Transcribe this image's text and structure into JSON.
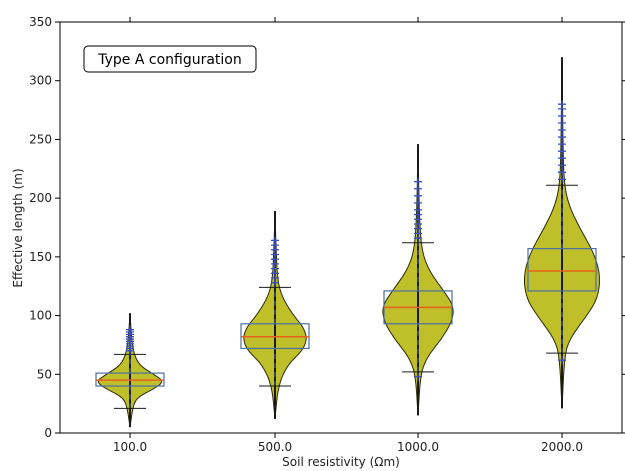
{
  "chart_data": {
    "type": "violin",
    "xlabel": "Soil resistivity (Ωm)",
    "ylabel": "Effective length (m)",
    "ylim": [
      0,
      350
    ],
    "yticks": [
      0,
      50,
      100,
      150,
      200,
      250,
      300,
      350
    ],
    "annotation": "Type A configuration",
    "categories": [
      "100.0",
      "500.0",
      "1000.0",
      "2000.0"
    ],
    "colors": {
      "violin_fill": "#bfbf2a",
      "violin_edge": "#2b2b00",
      "box": "#4a6fa5",
      "median": "#e8601c",
      "flier": "#3a50c0",
      "whisker": "#1a1a1a",
      "axis": "#000000"
    },
    "series": [
      {
        "category": "100.0",
        "min": 5,
        "whisker_low": 21,
        "q1": 40,
        "median": 45,
        "q3": 51,
        "whisker_high": 67,
        "max": 102,
        "fliers": [
          70,
          72,
          74,
          76,
          78,
          80,
          82,
          84,
          86,
          88
        ],
        "profile": [
          [
            5,
            0
          ],
          [
            20,
            0.04
          ],
          [
            30,
            0.1
          ],
          [
            38,
            0.4
          ],
          [
            44,
            0.55
          ],
          [
            50,
            0.38
          ],
          [
            58,
            0.14
          ],
          [
            70,
            0.05
          ],
          [
            85,
            0.02
          ],
          [
            102,
            0
          ]
        ]
      },
      {
        "category": "500.0",
        "min": 12,
        "whisker_low": 40,
        "q1": 72,
        "median": 82,
        "q3": 93,
        "whisker_high": 124,
        "max": 189,
        "fliers": [
          128,
          132,
          136,
          140,
          144,
          148,
          152,
          156,
          160,
          164
        ],
        "profile": [
          [
            12,
            0
          ],
          [
            40,
            0.05
          ],
          [
            58,
            0.2
          ],
          [
            70,
            0.44
          ],
          [
            80,
            0.52
          ],
          [
            90,
            0.46
          ],
          [
            100,
            0.3
          ],
          [
            115,
            0.12
          ],
          [
            130,
            0.04
          ],
          [
            160,
            0.015
          ],
          [
            189,
            0
          ]
        ]
      },
      {
        "category": "1000.0",
        "min": 15,
        "whisker_low": 52,
        "q1": 93,
        "median": 107,
        "q3": 121,
        "whisker_high": 162,
        "max": 246,
        "fliers": [
          48,
          166,
          170,
          174,
          178,
          182,
          186,
          190,
          196,
          202,
          208,
          214
        ],
        "profile": [
          [
            15,
            0
          ],
          [
            50,
            0.04
          ],
          [
            65,
            0.15
          ],
          [
            80,
            0.38
          ],
          [
            95,
            0.55
          ],
          [
            108,
            0.58
          ],
          [
            122,
            0.4
          ],
          [
            138,
            0.18
          ],
          [
            155,
            0.06
          ],
          [
            185,
            0.02
          ],
          [
            246,
            0
          ]
        ]
      },
      {
        "category": "2000.0",
        "min": 21,
        "whisker_low": 68,
        "q1": 121,
        "median": 138,
        "q3": 157,
        "whisker_high": 211,
        "max": 320,
        "fliers": [
          62,
          216,
          222,
          228,
          234,
          240,
          246,
          252,
          258,
          264,
          270,
          276,
          280
        ],
        "profile": [
          [
            21,
            0
          ],
          [
            65,
            0.04
          ],
          [
            80,
            0.12
          ],
          [
            100,
            0.4
          ],
          [
            115,
            0.58
          ],
          [
            135,
            0.62
          ],
          [
            155,
            0.5
          ],
          [
            175,
            0.28
          ],
          [
            195,
            0.1
          ],
          [
            215,
            0.03
          ],
          [
            250,
            0.015
          ],
          [
            320,
            0
          ]
        ]
      }
    ]
  }
}
